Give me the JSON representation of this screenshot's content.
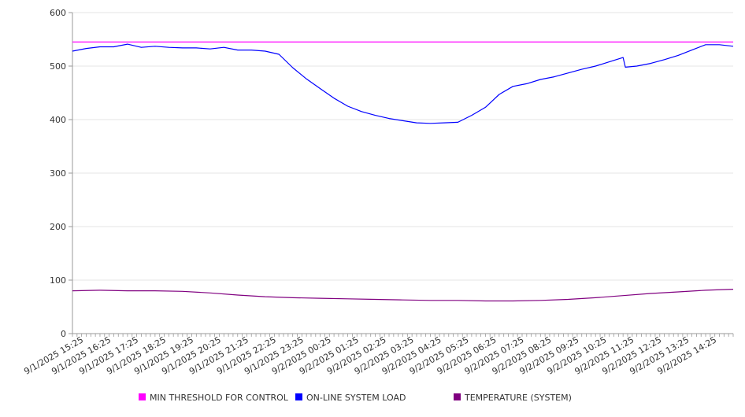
{
  "chart_data": {
    "type": "line",
    "title": "",
    "xlabel": "",
    "ylabel": "",
    "ylim": [
      0,
      600
    ],
    "y_ticks": [
      0,
      100,
      200,
      300,
      400,
      500,
      600
    ],
    "x_tick_labels": [
      "9/1/2025 15:25",
      "9/1/2025 16:25",
      "9/1/2025 17:25",
      "9/1/2025 18:25",
      "9/1/2025 19:25",
      "9/1/2025 20:25",
      "9/1/2025 21:25",
      "9/1/2025 22:25",
      "9/1/2025 23:25",
      "9/2/2025 00:25",
      "9/2/2025 01:25",
      "9/2/2025 02:25",
      "9/2/2025 03:25",
      "9/2/2025 04:25",
      "9/2/2025 05:25",
      "9/2/2025 06:25",
      "9/2/2025 07:25",
      "9/2/2025 08:25",
      "9/2/2025 09:25",
      "9/2/2025 10:25",
      "9/2/2025 11:25",
      "9/2/2025 12:25",
      "9/2/2025 13:25",
      "9/2/2025 14:25"
    ],
    "x_time_range": [
      "9/1/2025 15:00",
      "9/2/2025 15:00"
    ],
    "grid": "horizontal",
    "legend_position": "bottom",
    "series": [
      {
        "name": "MIN THRESHOLD FOR CONTROL",
        "color": "#ff00ff",
        "x": [
          "9/1/2025 15:00",
          "9/2/2025 15:00"
        ],
        "values": [
          545,
          545
        ]
      },
      {
        "name": "ON-LINE SYSTEM LOAD",
        "color": "#0000ff",
        "x": [
          "9/1/2025 15:00",
          "9/1/2025 15:30",
          "9/1/2025 16:00",
          "9/1/2025 16:30",
          "9/1/2025 17:00",
          "9/1/2025 17:30",
          "9/1/2025 18:00",
          "9/1/2025 18:30",
          "9/1/2025 19:00",
          "9/1/2025 19:30",
          "9/1/2025 20:00",
          "9/1/2025 20:30",
          "9/1/2025 21:00",
          "9/1/2025 21:30",
          "9/1/2025 22:00",
          "9/1/2025 22:30",
          "9/1/2025 23:00",
          "9/1/2025 23:30",
          "9/2/2025 00:00",
          "9/2/2025 00:30",
          "9/2/2025 01:00",
          "9/2/2025 01:30",
          "9/2/2025 02:00",
          "9/2/2025 02:30",
          "9/2/2025 03:00",
          "9/2/2025 03:30",
          "9/2/2025 04:00",
          "9/2/2025 04:30",
          "9/2/2025 05:00",
          "9/2/2025 05:30",
          "9/2/2025 06:00",
          "9/2/2025 06:30",
          "9/2/2025 07:00",
          "9/2/2025 07:30",
          "9/2/2025 08:00",
          "9/2/2025 08:30",
          "9/2/2025 09:00",
          "9/2/2025 09:30",
          "9/2/2025 10:00",
          "9/2/2025 10:30",
          "9/2/2025 11:00",
          "9/2/2025 11:05",
          "9/2/2025 11:30",
          "9/2/2025 12:00",
          "9/2/2025 12:30",
          "9/2/2025 13:00",
          "9/2/2025 13:30",
          "9/2/2025 14:00",
          "9/2/2025 14:30",
          "9/2/2025 15:00"
        ],
        "values": [
          528,
          533,
          536,
          536,
          541,
          535,
          537,
          535,
          534,
          534,
          532,
          535,
          530,
          530,
          528,
          522,
          497,
          476,
          458,
          440,
          425,
          415,
          408,
          402,
          398,
          394,
          393,
          394,
          395,
          408,
          423,
          447,
          462,
          467,
          475,
          480,
          487,
          494,
          500,
          508,
          516,
          498,
          500,
          505,
          512,
          520,
          530,
          540,
          540,
          537
        ]
      },
      {
        "name": "TEMPERATURE (SYSTEM)",
        "color": "#800080",
        "x": [
          "9/1/2025 15:00",
          "9/1/2025 16:00",
          "9/1/2025 17:00",
          "9/1/2025 18:00",
          "9/1/2025 19:00",
          "9/1/2025 20:00",
          "9/1/2025 21:00",
          "9/1/2025 22:00",
          "9/1/2025 23:00",
          "9/2/2025 00:00",
          "9/2/2025 01:00",
          "9/2/2025 02:00",
          "9/2/2025 03:00",
          "9/2/2025 04:00",
          "9/2/2025 05:00",
          "9/2/2025 06:00",
          "9/2/2025 07:00",
          "9/2/2025 08:00",
          "9/2/2025 09:00",
          "9/2/2025 10:00",
          "9/2/2025 11:00",
          "9/2/2025 12:00",
          "9/2/2025 13:00",
          "9/2/2025 14:00",
          "9/2/2025 15:00"
        ],
        "values": [
          80,
          81,
          80,
          80,
          79,
          76,
          72,
          69,
          67,
          66,
          65,
          64,
          63,
          62,
          62,
          61,
          61,
          62,
          64,
          67,
          71,
          75,
          78,
          81,
          83
        ]
      }
    ]
  }
}
